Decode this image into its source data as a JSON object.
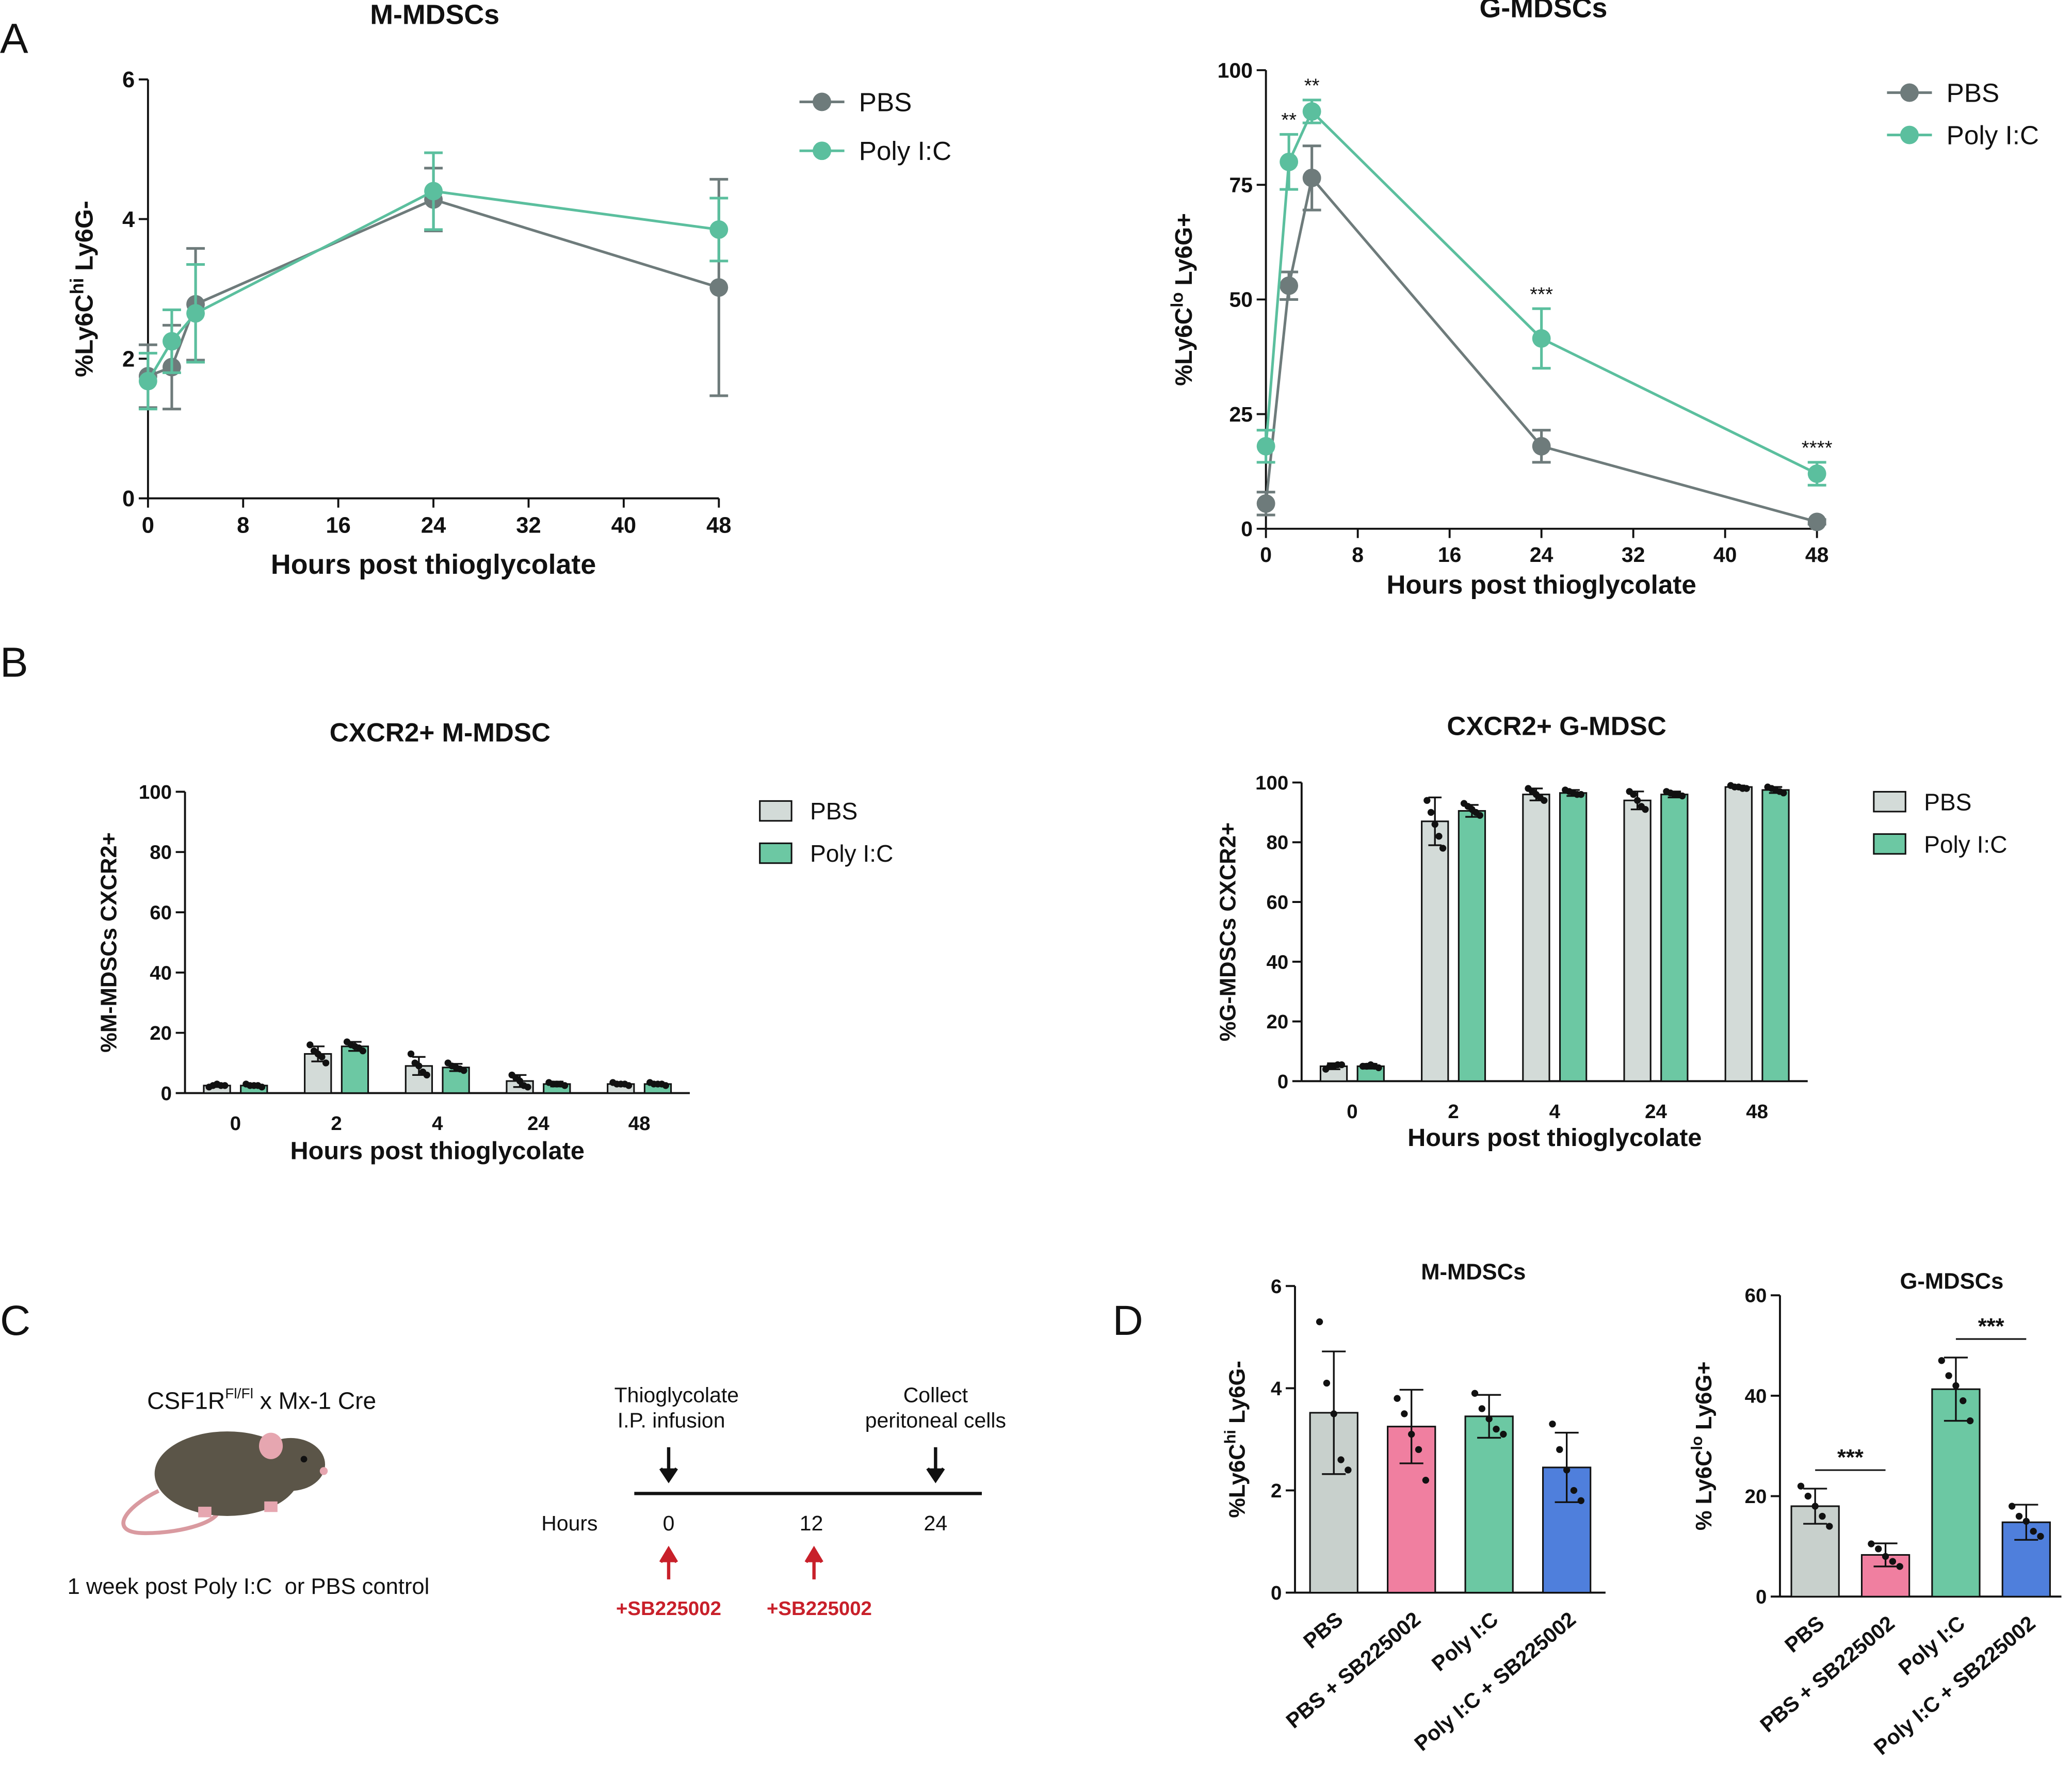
{
  "panel_labels": [
    "A",
    "B",
    "C",
    "D"
  ],
  "chart_data": [
    {
      "type": "line",
      "title": "M-MDSCs",
      "xlabel": "Hours post thioglycolate",
      "ylabel": [
        "%Ly6C",
        "hi",
        " Ly6G-"
      ],
      "x": [
        0,
        2,
        4,
        24,
        48
      ],
      "xlim": [
        0,
        48
      ],
      "xticks": [
        0,
        8,
        16,
        24,
        32,
        40,
        48
      ],
      "ylim": [
        0,
        6
      ],
      "yticks": [
        0,
        2,
        4,
        6
      ],
      "series": [
        {
          "name": "PBS",
          "color": "#6e7b7b",
          "values": [
            1.75,
            1.88,
            2.78,
            4.28,
            3.02
          ],
          "errors": [
            0.45,
            0.6,
            0.8,
            0.45,
            1.55
          ]
        },
        {
          "name": "Poly I:C",
          "color": "#5bbf9e",
          "values": [
            1.68,
            2.25,
            2.65,
            4.4,
            3.85
          ],
          "errors": [
            0.4,
            0.45,
            0.7,
            0.55,
            0.45
          ]
        }
      ]
    },
    {
      "type": "line",
      "title": "G-MDSCs",
      "xlabel": "Hours post thioglycolate",
      "ylabel": [
        "%Ly6C",
        "lo",
        " Ly6G+"
      ],
      "x": [
        0,
        2,
        4,
        24,
        48
      ],
      "xlim": [
        0,
        48
      ],
      "xticks": [
        0,
        8,
        16,
        24,
        32,
        40,
        48
      ],
      "ylim": [
        0,
        100
      ],
      "yticks": [
        0,
        25,
        50,
        75,
        100
      ],
      "annotations": [
        "**",
        "**",
        "***",
        "****"
      ],
      "series": [
        {
          "name": "PBS",
          "color": "#6e7b7b",
          "values": [
            5.5,
            53,
            76.5,
            18,
            1.5
          ],
          "errors": [
            2.5,
            3,
            7,
            3.5,
            0.5
          ]
        },
        {
          "name": "Poly I:C",
          "color": "#5bbf9e",
          "values": [
            18,
            80,
            91,
            41.5,
            12
          ],
          "errors": [
            3.5,
            6,
            2.5,
            6.5,
            2.5
          ]
        }
      ]
    },
    {
      "type": "bar",
      "title": "CXCR2+ M-MDSC",
      "xlabel": "Hours post thioglycolate",
      "ylabel": [
        "%M-MDSCs CXCR2+"
      ],
      "categories": [
        "0",
        "2",
        "4",
        "24",
        "48"
      ],
      "ylim": [
        0,
        100
      ],
      "yticks": [
        0,
        20,
        40,
        60,
        80,
        100
      ],
      "series": [
        {
          "name": "PBS",
          "color": "#d3dbd8",
          "values": [
            2.5,
            13,
            9,
            4,
            3
          ],
          "errors": [
            0.5,
            2.5,
            3,
            2,
            0.5
          ],
          "points": [
            [
              2,
              2.5,
              3,
              2.5,
              2.5
            ],
            [
              16,
              14,
              13,
              12,
              10
            ],
            [
              13,
              10,
              9,
              7,
              6
            ],
            [
              6,
              5,
              4,
              2.5,
              2
            ],
            [
              3.5,
              3,
              3,
              3,
              2.5
            ]
          ]
        },
        {
          "name": "Poly I:C",
          "color": "#6cc8a3",
          "values": [
            2.5,
            15.5,
            8.5,
            3,
            3
          ],
          "errors": [
            0.5,
            1.5,
            1.2,
            0.8,
            0.5
          ],
          "points": [
            [
              3,
              2.5,
              2.5,
              2.5,
              2
            ],
            [
              17,
              16,
              15.5,
              15,
              14
            ],
            [
              10,
              9,
              8.5,
              8,
              7.5
            ],
            [
              3.5,
              3,
              3,
              3,
              2.5
            ],
            [
              3.5,
              3,
              3,
              3,
              2.5
            ]
          ]
        }
      ]
    },
    {
      "type": "bar",
      "title": "CXCR2+ G-MDSC",
      "xlabel": "Hours post thioglycolate",
      "ylabel": [
        "%G-MDSCs CXCR2+"
      ],
      "categories": [
        "0",
        "2",
        "4",
        "24",
        "48"
      ],
      "ylim": [
        0,
        100
      ],
      "yticks": [
        0,
        20,
        40,
        60,
        80,
        100
      ],
      "series": [
        {
          "name": "PBS",
          "color": "#d3dbd8",
          "values": [
            5,
            87,
            96,
            94,
            98.5
          ],
          "errors": [
            1,
            8,
            2,
            3,
            0.5
          ],
          "points": [
            [
              4,
              5,
              5,
              5.5,
              5.5
            ],
            [
              94,
              90,
              86,
              82,
              78
            ],
            [
              98,
              97,
              96,
              95,
              94
            ],
            [
              97,
              96,
              94,
              92,
              91
            ],
            [
              99,
              98.5,
              98.5,
              98,
              98
            ]
          ]
        },
        {
          "name": "Poly I:C",
          "color": "#6cc8a3",
          "values": [
            5,
            90.5,
            96.5,
            96,
            97.5
          ],
          "errors": [
            0.8,
            2,
            1,
            1,
            1
          ],
          "points": [
            [
              5,
              5,
              5.5,
              5,
              4.5
            ],
            [
              93,
              92,
              91,
              90,
              89
            ],
            [
              97.5,
              97,
              96.5,
              96,
              96
            ],
            [
              97,
              96.5,
              96,
              96,
              95.5
            ],
            [
              98.5,
              98,
              97.5,
              97,
              96.5
            ]
          ]
        }
      ]
    },
    {
      "type": "bar",
      "title": "M-MDSCs",
      "ylabel": [
        "%Ly6C",
        "hi",
        " Ly6G-"
      ],
      "categories": [
        "PBS",
        "PBS + SB225002",
        "Poly I:C",
        "Poly I:C + SB225002"
      ],
      "ylim": [
        0,
        6
      ],
      "yticks": [
        0,
        2,
        4,
        6
      ],
      "colors": [
        "#c8d0cc",
        "#f07fa0",
        "#6cc8a3",
        "#4f7fdc"
      ],
      "values": [
        3.52,
        3.25,
        3.45,
        2.45
      ],
      "errors": [
        1.2,
        0.72,
        0.42,
        0.68
      ],
      "points": [
        [
          5.3,
          4.1,
          3.5,
          2.6,
          2.4
        ],
        [
          3.8,
          3.5,
          3.1,
          2.8,
          2.2
        ],
        [
          3.9,
          3.6,
          3.4,
          3.2,
          3.1
        ],
        [
          3.3,
          2.8,
          2.4,
          2.0,
          1.8
        ]
      ]
    },
    {
      "type": "bar",
      "title": "G-MDSCs",
      "ylabel": [
        "% Ly6C",
        "lo",
        " Ly6G+"
      ],
      "categories": [
        "PBS",
        "PBS + SB225002",
        "Poly I:C",
        "Poly I:C + SB225002"
      ],
      "ylim": [
        0,
        60
      ],
      "yticks": [
        0,
        20,
        40,
        60
      ],
      "colors": [
        "#c8d0cc",
        "#f07fa0",
        "#6cc8a3",
        "#4f7fdc"
      ],
      "values": [
        18,
        8.3,
        41.3,
        14.8
      ],
      "errors": [
        3.5,
        2.3,
        6.3,
        3.5
      ],
      "annotations": [
        "***",
        "***"
      ],
      "points": [
        [
          22,
          20,
          18,
          16,
          14
        ],
        [
          10.5,
          9.5,
          8,
          7,
          6
        ],
        [
          47,
          44,
          42,
          39,
          35
        ],
        [
          18,
          16,
          15,
          13,
          12
        ]
      ]
    }
  ],
  "schematic": {
    "strain": [
      "CSF1R",
      "Fl/Fl",
      " x Mx-1 Cre"
    ],
    "caption": "1 week post Poly I:C  or PBS control",
    "events": [
      [
        "Thioglycolate",
        "I.P. infusion"
      ],
      [
        "Collect",
        "peritoneal cells"
      ]
    ],
    "axis_label": "Hours",
    "hours": [
      0,
      12,
      24
    ],
    "treatments": [
      "+SB225002",
      "+SB225002"
    ]
  }
}
